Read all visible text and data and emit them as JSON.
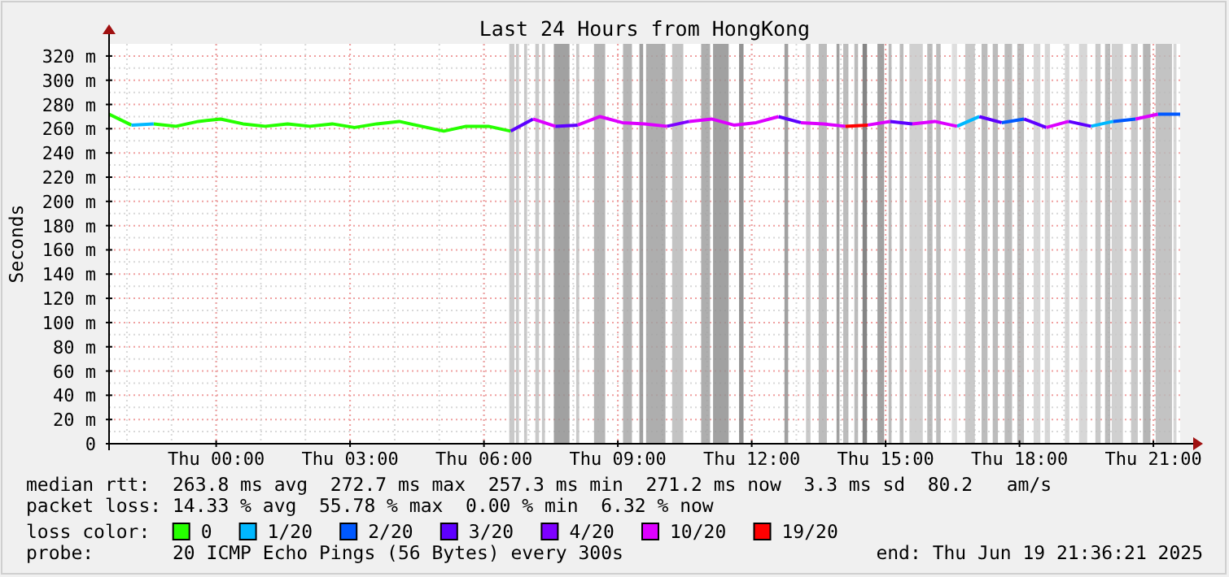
{
  "chart_data": {
    "type": "line",
    "title": "Last 24 Hours from HongKong",
    "ylabel": "Seconds",
    "legend_title": "loss color:",
    "legend": "bottom",
    "grid": true,
    "marker": "none",
    "line_style": "solid",
    "xlim": [
      "2025-06-18T21:36",
      "2025-06-19T21:36"
    ],
    "xticks": [
      {
        "value": "2025-06-19T00:00",
        "label": "Thu 00:00"
      },
      {
        "value": "2025-06-19T03:00",
        "label": "Thu 03:00"
      },
      {
        "value": "2025-06-19T06:00",
        "label": "Thu 06:00"
      },
      {
        "value": "2025-06-19T09:00",
        "label": "Thu 09:00"
      },
      {
        "value": "2025-06-19T12:00",
        "label": "Thu 12:00"
      },
      {
        "value": "2025-06-19T15:00",
        "label": "Thu 15:00"
      },
      {
        "value": "2025-06-19T18:00",
        "label": "Thu 18:00"
      },
      {
        "value": "2025-06-19T21:00",
        "label": "Thu 21:00"
      }
    ],
    "ylim": [
      0,
      330
    ],
    "yticks": [
      0,
      {
        "value": 20,
        "label": "20 m"
      },
      {
        "value": 40,
        "label": "40 m"
      },
      {
        "value": 60,
        "label": "60 m"
      },
      {
        "value": 80,
        "label": "80 m"
      },
      {
        "value": 100,
        "label": "100 m"
      },
      {
        "value": 120,
        "label": "120 m"
      },
      {
        "value": 140,
        "label": "140 m"
      },
      {
        "value": 160,
        "label": "160 m"
      },
      {
        "value": 180,
        "label": "180 m"
      },
      {
        "value": 200,
        "label": "200 m"
      },
      {
        "value": 220,
        "label": "220 m"
      },
      {
        "value": 240,
        "label": "240 m"
      },
      {
        "value": 260,
        "label": "260 m"
      },
      {
        "value": 280,
        "label": "280 m"
      },
      {
        "value": 300,
        "label": "300 m"
      },
      {
        "value": 320,
        "label": "320 m"
      }
    ],
    "series": [
      {
        "name": "0",
        "color": "#26ff00",
        "x": [
          "2025-06-18T21:36",
          "2025-06-18T22:06",
          null,
          "2025-06-18T22:36",
          "2025-06-18T23:06",
          "2025-06-18T23:36",
          "2025-06-19T00:06",
          "2025-06-19T00:36",
          "2025-06-19T01:06",
          "2025-06-19T01:36",
          "2025-06-19T02:06",
          "2025-06-19T02:36",
          "2025-06-19T03:06",
          "2025-06-19T03:36",
          "2025-06-19T04:06",
          "2025-06-19T04:36",
          "2025-06-19T05:06",
          "2025-06-19T05:36",
          "2025-06-19T06:06",
          "2025-06-19T06:36"
        ],
        "values": [
          272,
          263,
          null,
          264,
          262,
          266,
          268,
          264,
          262,
          264,
          262,
          264,
          261,
          264,
          266,
          262,
          258,
          262,
          262,
          258
        ]
      },
      {
        "name": "1/20",
        "color": "#00b8ff",
        "x": [
          "2025-06-18T22:06",
          "2025-06-18T22:36",
          null,
          "2025-06-19T16:36",
          "2025-06-19T17:06",
          null,
          "2025-06-19T19:36",
          "2025-06-19T20:06"
        ],
        "values": [
          263,
          264,
          null,
          262,
          270,
          null,
          262,
          266
        ]
      },
      {
        "name": "2/20",
        "color": "#0059ff",
        "x": [
          "2025-06-19T17:36",
          "2025-06-19T18:06",
          null,
          "2025-06-19T20:06",
          "2025-06-19T20:36",
          null,
          "2025-06-19T21:06",
          "2025-06-19T21:36"
        ],
        "values": [
          265,
          268,
          null,
          266,
          268,
          null,
          272,
          272
        ]
      },
      {
        "name": "3/20",
        "color": "#5e00ff",
        "x": [
          "2025-06-19T06:36",
          "2025-06-19T07:06",
          null,
          "2025-06-19T07:36",
          "2025-06-19T08:06",
          null,
          "2025-06-19T12:36",
          "2025-06-19T13:06",
          null,
          "2025-06-19T15:06",
          "2025-06-19T15:36",
          null,
          "2025-06-19T17:06",
          "2025-06-19T17:36",
          null,
          "2025-06-19T18:06",
          "2025-06-19T18:36",
          null,
          "2025-06-19T19:06",
          "2025-06-19T19:36"
        ],
        "values": [
          258,
          268,
          null,
          262,
          263,
          null,
          270,
          265,
          null,
          266,
          264,
          null,
          270,
          265,
          null,
          268,
          261,
          null,
          266,
          262
        ]
      },
      {
        "name": "4/20",
        "color": "#7e00ff",
        "x": [
          "2025-06-19T10:06",
          "2025-06-19T10:36"
        ],
        "values": [
          262,
          266
        ]
      },
      {
        "name": "10/20",
        "color": "#dd00ff",
        "x": [
          "2025-06-19T07:06",
          "2025-06-19T07:36",
          null,
          "2025-06-19T08:06",
          "2025-06-19T08:36",
          "2025-06-19T09:06",
          "2025-06-19T09:36",
          "2025-06-19T10:06",
          null,
          "2025-06-19T10:36",
          "2025-06-19T11:06",
          "2025-06-19T11:36",
          "2025-06-19T12:06",
          "2025-06-19T12:36",
          null,
          "2025-06-19T13:06",
          "2025-06-19T13:36",
          "2025-06-19T14:06",
          null,
          "2025-06-19T14:36",
          "2025-06-19T15:06",
          null,
          "2025-06-19T15:36",
          "2025-06-19T16:06",
          "2025-06-19T16:36",
          null,
          "2025-06-19T18:36",
          "2025-06-19T19:06",
          null,
          "2025-06-19T20:36",
          "2025-06-19T21:06"
        ],
        "values": [
          268,
          262,
          null,
          263,
          270,
          265,
          264,
          262,
          null,
          266,
          268,
          263,
          265,
          270,
          null,
          265,
          264,
          262,
          null,
          263,
          266,
          null,
          264,
          266,
          262,
          null,
          261,
          266,
          null,
          268,
          272
        ]
      },
      {
        "name": "19/20",
        "color": "#ff0000",
        "x": [
          "2025-06-19T14:06",
          "2025-06-19T14:36"
        ],
        "values": [
          262,
          263
        ]
      }
    ],
    "bands": [
      {
        "axis": "x",
        "from": "2025-06-19T06:34",
        "to": "2025-06-19T06:41",
        "color": "#c0c0c0"
      },
      {
        "axis": "x",
        "from": "2025-06-19T06:43",
        "to": "2025-06-19T06:47",
        "color": "#c0c0c0"
      },
      {
        "axis": "x",
        "from": "2025-06-19T06:54",
        "to": "2025-06-19T06:58",
        "color": "#c0c0c0"
      },
      {
        "axis": "x",
        "from": "2025-06-19T07:09",
        "to": "2025-06-19T07:14",
        "color": "#c0c0c0"
      },
      {
        "axis": "x",
        "from": "2025-06-19T07:18",
        "to": "2025-06-19T07:22",
        "color": "#c0c0c0"
      },
      {
        "axis": "x",
        "from": "2025-06-19T07:34",
        "to": "2025-06-19T07:55",
        "color": "#909090"
      },
      {
        "axis": "x",
        "from": "2025-06-19T08:04",
        "to": "2025-06-19T08:08",
        "color": "#c0c0c0"
      },
      {
        "axis": "x",
        "from": "2025-06-19T08:28",
        "to": "2025-06-19T08:43",
        "color": "#a8a8a8"
      },
      {
        "axis": "x",
        "from": "2025-06-19T09:07",
        "to": "2025-06-19T09:19",
        "color": "#a8a8a8"
      },
      {
        "axis": "x",
        "from": "2025-06-19T09:29",
        "to": "2025-06-19T09:34",
        "color": "#909090"
      },
      {
        "axis": "x",
        "from": "2025-06-19T09:38",
        "to": "2025-06-19T10:04",
        "color": "#a0a0a0"
      },
      {
        "axis": "x",
        "from": "2025-06-19T10:13",
        "to": "2025-06-19T10:28",
        "color": "#b8b8b8"
      },
      {
        "axis": "x",
        "from": "2025-06-19T10:52",
        "to": "2025-06-19T11:04",
        "color": "#a0a0a0"
      },
      {
        "axis": "x",
        "from": "2025-06-19T11:08",
        "to": "2025-06-19T11:29",
        "color": "#909090"
      },
      {
        "axis": "x",
        "from": "2025-06-19T11:43",
        "to": "2025-06-19T11:49",
        "color": "#808080"
      },
      {
        "axis": "x",
        "from": "2025-06-19T12:44",
        "to": "2025-06-19T12:49",
        "color": "#909090"
      },
      {
        "axis": "x",
        "from": "2025-06-19T13:13",
        "to": "2025-06-19T13:19",
        "color": "#c0c0c0"
      },
      {
        "axis": "x",
        "from": "2025-06-19T13:30",
        "to": "2025-06-19T13:41",
        "color": "#b0b0b0"
      },
      {
        "axis": "x",
        "from": "2025-06-19T13:54",
        "to": "2025-06-19T13:58",
        "color": "#909090"
      },
      {
        "axis": "x",
        "from": "2025-06-19T14:03",
        "to": "2025-06-19T14:10",
        "color": "#b0b0b0"
      },
      {
        "axis": "x",
        "from": "2025-06-19T14:18",
        "to": "2025-06-19T14:23",
        "color": "#b0b0b0"
      },
      {
        "axis": "x",
        "from": "2025-06-19T14:29",
        "to": "2025-06-19T14:35",
        "color": "#707070"
      },
      {
        "axis": "x",
        "from": "2025-06-19T14:49",
        "to": "2025-06-19T14:58",
        "color": "#909090"
      },
      {
        "axis": "x",
        "from": "2025-06-19T15:04",
        "to": "2025-06-19T15:08",
        "color": "#b0b0b0"
      },
      {
        "axis": "x",
        "from": "2025-06-19T15:19",
        "to": "2025-06-19T15:24",
        "color": "#b0b0b0"
      },
      {
        "axis": "x",
        "from": "2025-06-19T15:32",
        "to": "2025-06-19T15:50",
        "color": "#c8c8c8"
      },
      {
        "axis": "x",
        "from": "2025-06-19T15:56",
        "to": "2025-06-19T16:03",
        "color": "#b0b0b0"
      },
      {
        "axis": "x",
        "from": "2025-06-19T16:08",
        "to": "2025-06-19T16:14",
        "color": "#b0b0b0"
      },
      {
        "axis": "x",
        "from": "2025-06-19T16:29",
        "to": "2025-06-19T16:36",
        "color": "#d8d8d8"
      },
      {
        "axis": "x",
        "from": "2025-06-19T16:47",
        "to": "2025-06-19T17:00",
        "color": "#c0c0c0"
      },
      {
        "axis": "x",
        "from": "2025-06-19T17:09",
        "to": "2025-06-19T17:17",
        "color": "#b0b0b0"
      },
      {
        "axis": "x",
        "from": "2025-06-19T17:24",
        "to": "2025-06-19T17:31",
        "color": "#b0b0b0"
      },
      {
        "axis": "x",
        "from": "2025-06-19T17:40",
        "to": "2025-06-19T17:50",
        "color": "#b0b0b0"
      },
      {
        "axis": "x",
        "from": "2025-06-19T17:57",
        "to": "2025-06-19T18:06",
        "color": "#b0b0b0"
      },
      {
        "axis": "x",
        "from": "2025-06-19T18:19",
        "to": "2025-06-19T18:28",
        "color": "#d0d0d0"
      },
      {
        "axis": "x",
        "from": "2025-06-19T18:34",
        "to": "2025-06-19T18:41",
        "color": "#d0d0d0"
      },
      {
        "axis": "x",
        "from": "2025-06-19T19:01",
        "to": "2025-06-19T19:07",
        "color": "#d0d0d0"
      },
      {
        "axis": "x",
        "from": "2025-06-19T19:20",
        "to": "2025-06-19T19:31",
        "color": "#d0d0d0"
      },
      {
        "axis": "x",
        "from": "2025-06-19T19:42",
        "to": "2025-06-19T19:49",
        "color": "#c0c0c0"
      },
      {
        "axis": "x",
        "from": "2025-06-19T19:55",
        "to": "2025-06-19T20:02",
        "color": "#b0b0b0"
      },
      {
        "axis": "x",
        "from": "2025-06-19T20:04",
        "to": "2025-06-19T20:19",
        "color": "#c8c8c8"
      },
      {
        "axis": "x",
        "from": "2025-06-19T20:30",
        "to": "2025-06-19T20:39",
        "color": "#c0c0c0"
      },
      {
        "axis": "x",
        "from": "2025-06-19T20:46",
        "to": "2025-06-19T20:56",
        "color": "#a8a8a8"
      },
      {
        "axis": "x",
        "from": "2025-06-19T21:03",
        "to": "2025-06-19T21:25",
        "color": "#b8b8b8"
      },
      {
        "axis": "x",
        "from": "2025-06-19T21:27",
        "to": "2025-06-19T21:31",
        "color": "#d0d0d0"
      }
    ],
    "annotations": [
      "median rtt:  263.8 ms avg  272.7 ms max  257.3 ms min  271.2 ms now  3.3 ms sd  80.2   am/s",
      "packet loss: 14.33 % avg  55.78 % max  0.00 % min  6.32 % now",
      "probe:       20 ICMP Echo Pings (56 Bytes) every 300s",
      "end: Thu Jun 19 21:36:21 2025"
    ]
  }
}
